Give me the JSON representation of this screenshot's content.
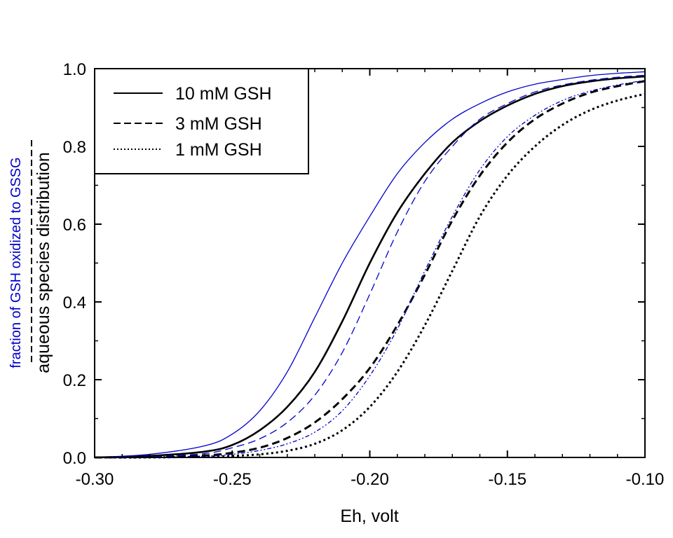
{
  "chart_data": {
    "type": "line",
    "xlabel": "Eh, volt",
    "ylabel": {
      "primary": "aqueous species distribution",
      "secondary": "fraction of GSH oxidized to GSSG",
      "secondary_color": "#0000cc"
    },
    "xlim": [
      -0.3,
      -0.1
    ],
    "ylim": [
      0.0,
      1.0
    ],
    "x_ticks": [
      "-0.30",
      "-0.25",
      "-0.20",
      "-0.15",
      "-0.10"
    ],
    "y_ticks": [
      "0.0",
      "0.2",
      "0.4",
      "0.6",
      "0.8",
      "1.0"
    ],
    "legend_position": "top-left",
    "legend": [
      {
        "label": "10 mM GSH",
        "style": "solid"
      },
      {
        "label": "3 mM GSH",
        "style": "dashed"
      },
      {
        "label": "1 mM GSH",
        "style": "dotted"
      }
    ],
    "x": [
      -0.3,
      -0.28,
      -0.26,
      -0.25,
      -0.24,
      -0.23,
      -0.22,
      -0.21,
      -0.2,
      -0.19,
      -0.18,
      -0.17,
      -0.16,
      -0.15,
      -0.14,
      -0.13,
      -0.12,
      -0.11,
      -0.1
    ],
    "series": [
      {
        "color": "#000000",
        "dash": "solid",
        "width": 2.6,
        "values": [
          0.0,
          0.004,
          0.015,
          0.032,
          0.07,
          0.13,
          0.22,
          0.35,
          0.5,
          0.63,
          0.73,
          0.81,
          0.865,
          0.905,
          0.935,
          0.955,
          0.967,
          0.975,
          0.98
        ]
      },
      {
        "color": "#000000",
        "dash": "dashed",
        "width": 3,
        "values": [
          0.0,
          0.001,
          0.005,
          0.012,
          0.025,
          0.05,
          0.09,
          0.15,
          0.23,
          0.34,
          0.47,
          0.61,
          0.725,
          0.81,
          0.87,
          0.91,
          0.938,
          0.955,
          0.968
        ]
      },
      {
        "color": "#000000",
        "dash": "dotted",
        "width": 3,
        "values": [
          0.0,
          0.0,
          0.002,
          0.004,
          0.008,
          0.017,
          0.035,
          0.07,
          0.13,
          0.22,
          0.34,
          0.48,
          0.62,
          0.725,
          0.8,
          0.855,
          0.893,
          0.918,
          0.935
        ]
      },
      {
        "color": "#0000cc",
        "dash": "solid",
        "width": 1.3,
        "values": [
          0.0,
          0.008,
          0.03,
          0.06,
          0.12,
          0.22,
          0.36,
          0.5,
          0.62,
          0.73,
          0.81,
          0.87,
          0.91,
          0.94,
          0.96,
          0.972,
          0.982,
          0.988,
          0.992
        ]
      },
      {
        "color": "#0000cc",
        "dash": "dashed",
        "width": 1.3,
        "values": [
          0.0,
          0.002,
          0.01,
          0.025,
          0.048,
          0.09,
          0.16,
          0.27,
          0.42,
          0.58,
          0.71,
          0.8,
          0.87,
          0.91,
          0.94,
          0.958,
          0.97,
          0.978,
          0.983
        ]
      },
      {
        "color": "#0000cc",
        "dash": "dashdotdot",
        "width": 1.3,
        "values": [
          0.0,
          0.0,
          0.003,
          0.008,
          0.018,
          0.035,
          0.065,
          0.12,
          0.21,
          0.33,
          0.48,
          0.62,
          0.74,
          0.825,
          0.88,
          0.918,
          0.942,
          0.958,
          0.97
        ]
      }
    ]
  }
}
